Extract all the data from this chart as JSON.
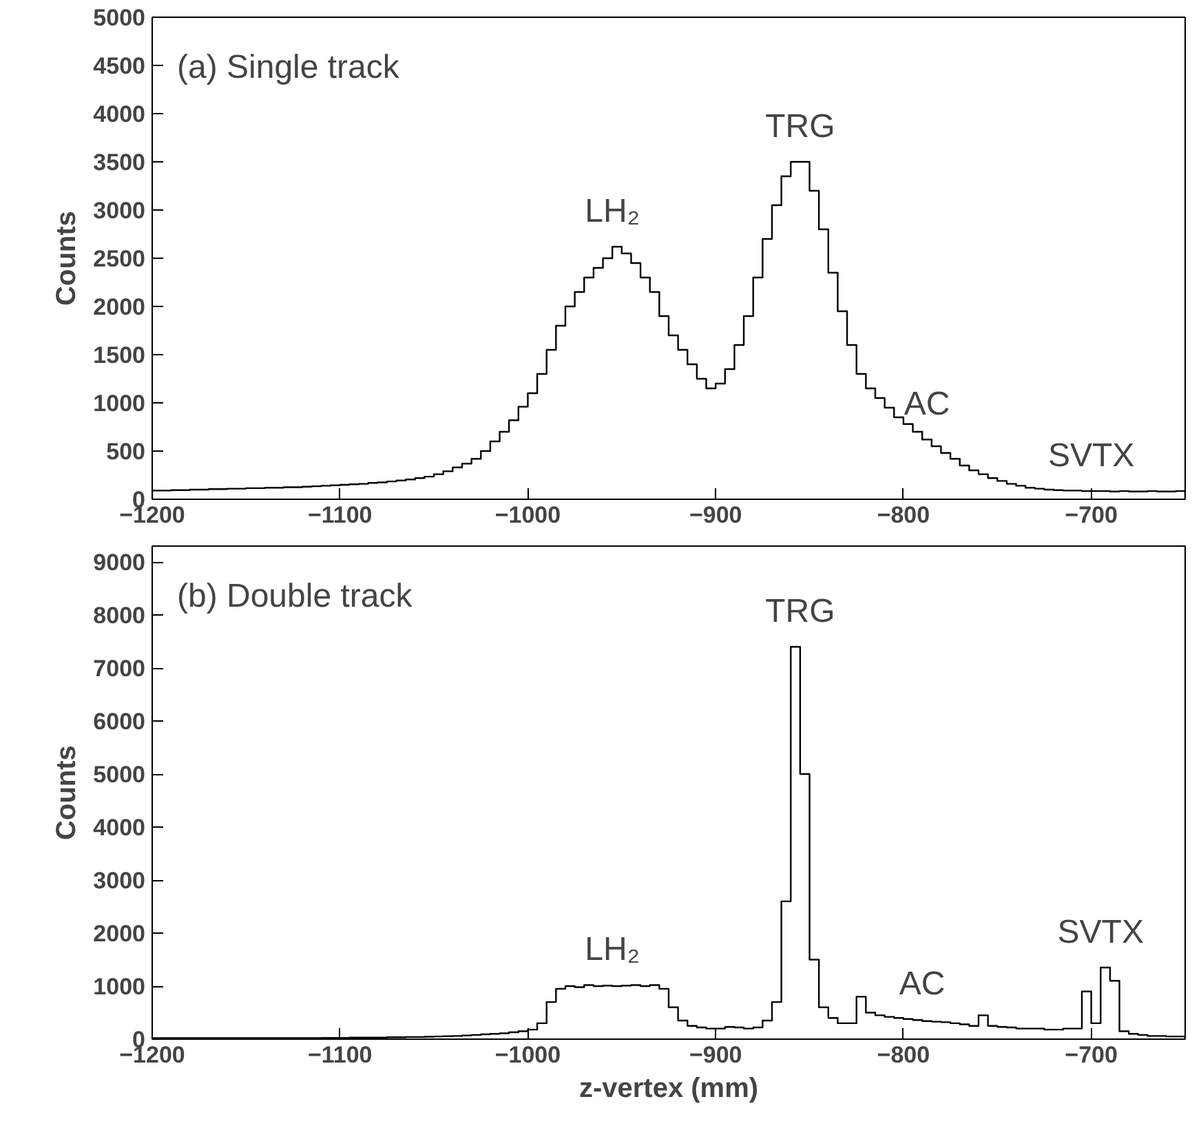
{
  "chart_data": [
    {
      "type": "histogram",
      "title": "(a) Single track",
      "ylabel": "Counts",
      "xlim": [
        -1200,
        -650
      ],
      "xticks": [
        -1200,
        -1100,
        -1000,
        -900,
        -800,
        -700
      ],
      "ylim": [
        0,
        5000
      ],
      "yticks": [
        0,
        500,
        1000,
        1500,
        2000,
        2500,
        3000,
        3500,
        4000,
        4500,
        5000
      ],
      "grid": false,
      "color": "#000000",
      "bins": [
        -1200,
        -1195,
        -1190,
        -1185,
        -1180,
        -1175,
        -1170,
        -1165,
        -1160,
        -1155,
        -1150,
        -1145,
        -1140,
        -1135,
        -1130,
        -1125,
        -1120,
        -1115,
        -1110,
        -1105,
        -1100,
        -1095,
        -1090,
        -1085,
        -1080,
        -1075,
        -1070,
        -1065,
        -1060,
        -1055,
        -1050,
        -1045,
        -1040,
        -1035,
        -1030,
        -1025,
        -1020,
        -1015,
        -1010,
        -1005,
        -1000,
        -995,
        -990,
        -985,
        -980,
        -975,
        -970,
        -965,
        -960,
        -955,
        -950,
        -945,
        -940,
        -935,
        -930,
        -925,
        -920,
        -915,
        -910,
        -905,
        -900,
        -895,
        -890,
        -885,
        -880,
        -875,
        -870,
        -865,
        -860,
        -855,
        -850,
        -845,
        -840,
        -835,
        -830,
        -825,
        -820,
        -815,
        -810,
        -805,
        -800,
        -795,
        -790,
        -785,
        -780,
        -775,
        -770,
        -765,
        -760,
        -755,
        -750,
        -745,
        -740,
        -735,
        -730,
        -725,
        -720,
        -715,
        -710,
        -705,
        -700,
        -695,
        -690,
        -685,
        -680,
        -675,
        -670,
        -665,
        -660,
        -655,
        -650
      ],
      "values": [
        90,
        90,
        95,
        95,
        100,
        100,
        105,
        105,
        110,
        110,
        115,
        115,
        120,
        120,
        125,
        125,
        130,
        135,
        140,
        145,
        150,
        155,
        160,
        170,
        175,
        185,
        195,
        205,
        220,
        235,
        260,
        290,
        330,
        370,
        420,
        500,
        600,
        700,
        820,
        960,
        1100,
        1300,
        1550,
        1800,
        2000,
        2150,
        2300,
        2400,
        2500,
        2620,
        2550,
        2450,
        2300,
        2150,
        1900,
        1700,
        1550,
        1400,
        1250,
        1150,
        1200,
        1350,
        1600,
        1900,
        2300,
        2700,
        3050,
        3350,
        3500,
        3500,
        3200,
        2800,
        2350,
        1950,
        1600,
        1300,
        1150,
        1050,
        950,
        850,
        780,
        700,
        620,
        550,
        480,
        420,
        350,
        300,
        260,
        220,
        190,
        160,
        140,
        120,
        110,
        100,
        95,
        90,
        90,
        85,
        85,
        85,
        80,
        85,
        80,
        80,
        85,
        80,
        80,
        85
      ],
      "annotations": [
        {
          "text": "LH₂",
          "x": -955,
          "y": 2620
        },
        {
          "text": "TRG",
          "x": -855,
          "y": 3500
        },
        {
          "text": "AC",
          "x": -787.5,
          "y": 620
        },
        {
          "text": "SVTX",
          "x": -700,
          "y": 85
        }
      ]
    },
    {
      "type": "histogram",
      "title": "(b) Double track",
      "xlabel": "z-vertex (mm)",
      "ylabel": "Counts",
      "xlim": [
        -1200,
        -650
      ],
      "xticks": [
        -1200,
        -1100,
        -1000,
        -900,
        -800,
        -700
      ],
      "ylim": [
        0,
        9300
      ],
      "yticks": [
        0,
        1000,
        2000,
        3000,
        4000,
        5000,
        6000,
        7000,
        8000,
        9000
      ],
      "grid": false,
      "color": "#000000",
      "bins": [
        -1200,
        -1195,
        -1190,
        -1185,
        -1180,
        -1175,
        -1170,
        -1165,
        -1160,
        -1155,
        -1150,
        -1145,
        -1140,
        -1135,
        -1130,
        -1125,
        -1120,
        -1115,
        -1110,
        -1105,
        -1100,
        -1095,
        -1090,
        -1085,
        -1080,
        -1075,
        -1070,
        -1065,
        -1060,
        -1055,
        -1050,
        -1045,
        -1040,
        -1035,
        -1030,
        -1025,
        -1020,
        -1015,
        -1010,
        -1005,
        -1000,
        -995,
        -990,
        -985,
        -980,
        -975,
        -970,
        -965,
        -960,
        -955,
        -950,
        -945,
        -940,
        -935,
        -930,
        -925,
        -920,
        -915,
        -910,
        -905,
        -900,
        -895,
        -890,
        -885,
        -880,
        -875,
        -870,
        -865,
        -860,
        -855,
        -850,
        -845,
        -840,
        -835,
        -830,
        -825,
        -820,
        -815,
        -810,
        -805,
        -800,
        -795,
        -790,
        -785,
        -780,
        -775,
        -770,
        -765,
        -760,
        -755,
        -750,
        -745,
        -740,
        -735,
        -730,
        -725,
        -720,
        -715,
        -710,
        -705,
        -700,
        -695,
        -690,
        -685,
        -680,
        -675,
        -670,
        -665,
        -660,
        -655,
        -650
      ],
      "values": [
        20,
        20,
        20,
        20,
        20,
        20,
        20,
        20,
        20,
        20,
        20,
        20,
        20,
        20,
        20,
        20,
        20,
        20,
        25,
        25,
        25,
        30,
        30,
        30,
        30,
        35,
        35,
        40,
        40,
        45,
        50,
        55,
        60,
        70,
        80,
        90,
        100,
        110,
        130,
        150,
        180,
        300,
        700,
        950,
        1000,
        980,
        1020,
        1000,
        1010,
        1000,
        1010,
        1020,
        1000,
        1020,
        950,
        600,
        350,
        250,
        220,
        200,
        200,
        230,
        220,
        200,
        220,
        350,
        700,
        2600,
        7400,
        5000,
        1500,
        600,
        400,
        300,
        300,
        800,
        500,
        450,
        420,
        400,
        380,
        360,
        340,
        330,
        320,
        300,
        280,
        250,
        450,
        250,
        230,
        220,
        200,
        200,
        200,
        180,
        180,
        200,
        200,
        900,
        300,
        1350,
        1100,
        150,
        100,
        80,
        60,
        60,
        50,
        50
      ],
      "annotations": [
        {
          "text": "LH₂",
          "x": -955,
          "y": 1020
        },
        {
          "text": "TRG",
          "x": -855,
          "y": 7400
        },
        {
          "text": "AC",
          "x": -790,
          "y": 380
        },
        {
          "text": "SVTX",
          "x": -695,
          "y": 1350
        }
      ]
    }
  ]
}
